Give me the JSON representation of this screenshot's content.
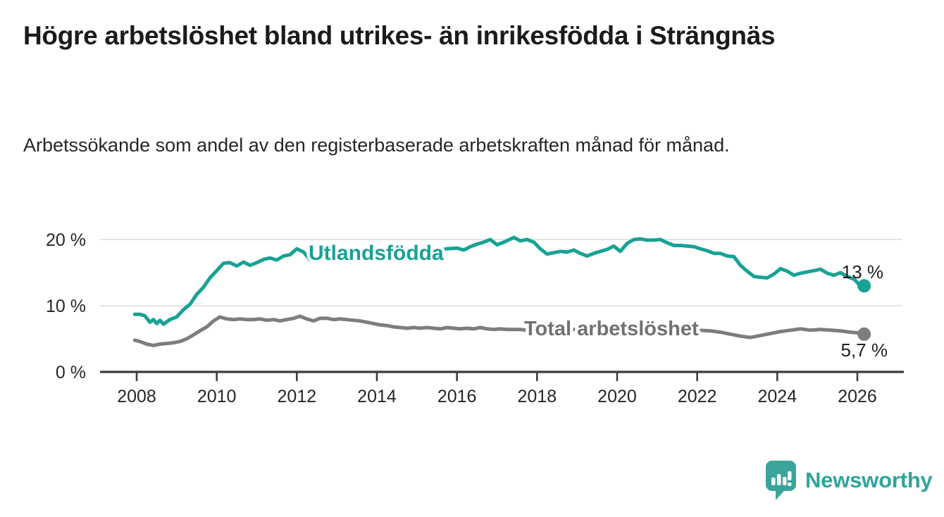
{
  "chart_data": {
    "type": "line",
    "title": "Högre arbetslöshet bland utrikes- än inrikesfödda i Strängnäs",
    "subtitle": "Arbetssökande som andel av den registerbaserade arbetskraften månad för månad.",
    "xlabel": "",
    "ylabel": "",
    "x_range": [
      2007.9,
      2027.1
    ],
    "ylim": [
      0,
      22
    ],
    "grid": "horizontal",
    "legend_position": "inline-labels",
    "y_ticks": [
      {
        "value": 0,
        "label": "0 %"
      },
      {
        "value": 10,
        "label": "10 %"
      },
      {
        "value": 20,
        "label": "20 %"
      }
    ],
    "x_ticks": [
      {
        "value": 2008,
        "label": "2008"
      },
      {
        "value": 2010,
        "label": "2010"
      },
      {
        "value": 2012,
        "label": "2012"
      },
      {
        "value": 2014,
        "label": "2014"
      },
      {
        "value": 2016,
        "label": "2016"
      },
      {
        "value": 2018,
        "label": "2018"
      },
      {
        "value": 2020,
        "label": "2020"
      },
      {
        "value": 2022,
        "label": "2022"
      },
      {
        "value": 2024,
        "label": "2024"
      },
      {
        "value": 2026,
        "label": "2026"
      }
    ],
    "series": [
      {
        "name": "Utlandsfödda",
        "color": "#17a295",
        "end_label": "13 %",
        "end_value": 13,
        "points": [
          [
            2007.95,
            8.7
          ],
          [
            2008.08,
            8.7
          ],
          [
            2008.2,
            8.5
          ],
          [
            2008.33,
            7.5
          ],
          [
            2008.42,
            7.9
          ],
          [
            2008.5,
            7.3
          ],
          [
            2008.58,
            7.8
          ],
          [
            2008.67,
            7.2
          ],
          [
            2008.83,
            7.9
          ],
          [
            2009.0,
            8.3
          ],
          [
            2009.17,
            9.4
          ],
          [
            2009.33,
            10.2
          ],
          [
            2009.5,
            11.7
          ],
          [
            2009.67,
            12.8
          ],
          [
            2009.83,
            14.2
          ],
          [
            2010.0,
            15.3
          ],
          [
            2010.17,
            16.4
          ],
          [
            2010.33,
            16.5
          ],
          [
            2010.5,
            16.0
          ],
          [
            2010.67,
            16.6
          ],
          [
            2010.83,
            16.1
          ],
          [
            2011.0,
            16.5
          ],
          [
            2011.17,
            17.0
          ],
          [
            2011.33,
            17.2
          ],
          [
            2011.5,
            16.9
          ],
          [
            2011.67,
            17.5
          ],
          [
            2011.83,
            17.7
          ],
          [
            2012.0,
            18.6
          ],
          [
            2012.17,
            18.1
          ],
          [
            2012.33,
            16.9
          ],
          [
            2012.5,
            17.6
          ],
          [
            2012.67,
            18.0
          ],
          [
            2012.83,
            18.2
          ],
          [
            2013.0,
            18.0
          ],
          [
            2013.25,
            17.8
          ],
          [
            2013.5,
            18.1
          ],
          [
            2013.75,
            17.9
          ],
          [
            2014.0,
            18.1
          ],
          [
            2014.25,
            17.9
          ],
          [
            2014.5,
            18.2
          ],
          [
            2014.75,
            18.0
          ],
          [
            2015.0,
            18.2
          ],
          [
            2015.25,
            18.5
          ],
          [
            2015.5,
            18.3
          ],
          [
            2015.75,
            18.6
          ],
          [
            2016.0,
            18.7
          ],
          [
            2016.17,
            18.4
          ],
          [
            2016.33,
            18.9
          ],
          [
            2016.5,
            19.3
          ],
          [
            2016.67,
            19.6
          ],
          [
            2016.83,
            20.0
          ],
          [
            2017.0,
            19.2
          ],
          [
            2017.17,
            19.6
          ],
          [
            2017.42,
            20.3
          ],
          [
            2017.58,
            19.8
          ],
          [
            2017.75,
            20.0
          ],
          [
            2017.92,
            19.6
          ],
          [
            2018.08,
            18.6
          ],
          [
            2018.25,
            17.8
          ],
          [
            2018.42,
            18.0
          ],
          [
            2018.58,
            18.2
          ],
          [
            2018.75,
            18.1
          ],
          [
            2018.92,
            18.4
          ],
          [
            2019.08,
            17.9
          ],
          [
            2019.25,
            17.5
          ],
          [
            2019.42,
            17.9
          ],
          [
            2019.58,
            18.2
          ],
          [
            2019.75,
            18.5
          ],
          [
            2019.92,
            19.0
          ],
          [
            2020.08,
            18.2
          ],
          [
            2020.25,
            19.4
          ],
          [
            2020.42,
            20.0
          ],
          [
            2020.58,
            20.1
          ],
          [
            2020.75,
            19.9
          ],
          [
            2020.92,
            19.9
          ],
          [
            2021.08,
            20.0
          ],
          [
            2021.25,
            19.5
          ],
          [
            2021.42,
            19.1
          ],
          [
            2021.58,
            19.1
          ],
          [
            2021.75,
            19.0
          ],
          [
            2021.92,
            18.9
          ],
          [
            2022.08,
            18.6
          ],
          [
            2022.25,
            18.3
          ],
          [
            2022.42,
            17.9
          ],
          [
            2022.58,
            17.9
          ],
          [
            2022.75,
            17.5
          ],
          [
            2022.92,
            17.4
          ],
          [
            2023.08,
            16.1
          ],
          [
            2023.25,
            15.2
          ],
          [
            2023.42,
            14.4
          ],
          [
            2023.58,
            14.3
          ],
          [
            2023.75,
            14.2
          ],
          [
            2023.92,
            14.8
          ],
          [
            2024.08,
            15.6
          ],
          [
            2024.25,
            15.2
          ],
          [
            2024.42,
            14.6
          ],
          [
            2024.58,
            14.9
          ],
          [
            2024.75,
            15.1
          ],
          [
            2024.92,
            15.3
          ],
          [
            2025.08,
            15.5
          ],
          [
            2025.25,
            14.9
          ],
          [
            2025.42,
            14.6
          ],
          [
            2025.58,
            15.0
          ],
          [
            2025.75,
            14.4
          ],
          [
            2025.92,
            14.0
          ],
          [
            2026.0,
            13.5
          ],
          [
            2026.08,
            12.9
          ],
          [
            2026.17,
            13.0
          ]
        ]
      },
      {
        "name": "Total arbetslöshet",
        "color": "#7d7d7d",
        "end_label": "5,7 %",
        "end_value": 5.7,
        "points": [
          [
            2007.95,
            4.8
          ],
          [
            2008.08,
            4.6
          ],
          [
            2008.25,
            4.2
          ],
          [
            2008.42,
            4.0
          ],
          [
            2008.58,
            4.2
          ],
          [
            2008.75,
            4.3
          ],
          [
            2008.92,
            4.4
          ],
          [
            2009.08,
            4.6
          ],
          [
            2009.25,
            5.0
          ],
          [
            2009.42,
            5.6
          ],
          [
            2009.58,
            6.2
          ],
          [
            2009.75,
            6.8
          ],
          [
            2009.92,
            7.7
          ],
          [
            2010.08,
            8.3
          ],
          [
            2010.25,
            8.0
          ],
          [
            2010.42,
            7.9
          ],
          [
            2010.58,
            8.0
          ],
          [
            2010.75,
            7.9
          ],
          [
            2010.92,
            7.9
          ],
          [
            2011.08,
            8.0
          ],
          [
            2011.25,
            7.8
          ],
          [
            2011.42,
            7.9
          ],
          [
            2011.58,
            7.7
          ],
          [
            2011.75,
            7.9
          ],
          [
            2011.92,
            8.1
          ],
          [
            2012.08,
            8.4
          ],
          [
            2012.25,
            8.0
          ],
          [
            2012.42,
            7.7
          ],
          [
            2012.58,
            8.1
          ],
          [
            2012.75,
            8.1
          ],
          [
            2012.92,
            7.9
          ],
          [
            2013.08,
            8.0
          ],
          [
            2013.25,
            7.9
          ],
          [
            2013.42,
            7.8
          ],
          [
            2013.58,
            7.7
          ],
          [
            2013.75,
            7.5
          ],
          [
            2013.92,
            7.3
          ],
          [
            2014.08,
            7.1
          ],
          [
            2014.25,
            7.0
          ],
          [
            2014.42,
            6.8
          ],
          [
            2014.58,
            6.7
          ],
          [
            2014.75,
            6.6
          ],
          [
            2014.92,
            6.7
          ],
          [
            2015.08,
            6.6
          ],
          [
            2015.25,
            6.7
          ],
          [
            2015.42,
            6.6
          ],
          [
            2015.58,
            6.5
          ],
          [
            2015.75,
            6.7
          ],
          [
            2015.92,
            6.6
          ],
          [
            2016.08,
            6.5
          ],
          [
            2016.25,
            6.6
          ],
          [
            2016.42,
            6.5
          ],
          [
            2016.58,
            6.7
          ],
          [
            2016.75,
            6.5
          ],
          [
            2016.92,
            6.4
          ],
          [
            2017.08,
            6.5
          ],
          [
            2017.25,
            6.4
          ],
          [
            2017.42,
            6.4
          ],
          [
            2017.58,
            6.4
          ],
          [
            2017.75,
            6.3
          ],
          [
            2018.0,
            6.3
          ],
          [
            2018.5,
            6.4
          ],
          [
            2019.0,
            6.4
          ],
          [
            2019.5,
            6.3
          ],
          [
            2020.0,
            6.5
          ],
          [
            2020.33,
            6.8
          ],
          [
            2020.67,
            6.9
          ],
          [
            2021.0,
            6.7
          ],
          [
            2021.33,
            6.5
          ],
          [
            2021.67,
            6.4
          ],
          [
            2022.0,
            6.3
          ],
          [
            2022.33,
            6.2
          ],
          [
            2022.58,
            6.0
          ],
          [
            2022.83,
            5.7
          ],
          [
            2023.08,
            5.4
          ],
          [
            2023.33,
            5.2
          ],
          [
            2023.58,
            5.5
          ],
          [
            2023.83,
            5.8
          ],
          [
            2024.08,
            6.1
          ],
          [
            2024.33,
            6.3
          ],
          [
            2024.58,
            6.5
          ],
          [
            2024.83,
            6.3
          ],
          [
            2025.08,
            6.4
          ],
          [
            2025.33,
            6.3
          ],
          [
            2025.58,
            6.2
          ],
          [
            2025.83,
            6.0
          ],
          [
            2026.0,
            5.9
          ],
          [
            2026.17,
            5.7
          ]
        ]
      }
    ]
  },
  "colors": {
    "grid": "#dbdbdb",
    "axis": "#3c3c3c",
    "tick_text": "#262626",
    "end_label_text": "#1f1f1f",
    "inline_label_total": "#717171"
  },
  "logo": {
    "label": "Newsworthy",
    "icon": "newsworthy-speech-bubble-bar-chart-icon",
    "color": "#2ea59a"
  }
}
